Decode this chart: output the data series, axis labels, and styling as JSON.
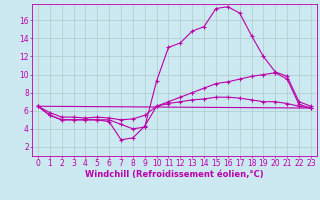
{
  "background_color": "#cce8f0",
  "line_color": "#bb00aa",
  "grid_color": "#aacccc",
  "marker": "+",
  "marker_size": 3,
  "marker_lw": 0.8,
  "xlabel": "Windchill (Refroidissement éolien,°C)",
  "xlabel_fontsize": 6.0,
  "tick_fontsize": 5.5,
  "xlim": [
    -0.5,
    23.5
  ],
  "ylim": [
    1.0,
    17.8
  ],
  "yticks": [
    2,
    4,
    6,
    8,
    10,
    12,
    14,
    16
  ],
  "xticks": [
    0,
    1,
    2,
    3,
    4,
    5,
    6,
    7,
    8,
    9,
    10,
    11,
    12,
    13,
    14,
    15,
    16,
    17,
    18,
    19,
    20,
    21,
    22,
    23
  ],
  "line1_x": [
    0,
    1,
    2,
    3,
    4,
    5,
    6,
    7,
    8,
    9,
    10,
    11,
    12,
    13,
    14,
    15,
    16,
    17,
    18,
    19,
    20,
    21,
    22,
    23
  ],
  "line1_y": [
    6.5,
    5.5,
    5.0,
    5.0,
    5.0,
    5.0,
    5.0,
    4.5,
    4.0,
    4.2,
    9.3,
    13.0,
    13.5,
    14.8,
    15.3,
    17.3,
    17.5,
    16.8,
    14.3,
    12.0,
    10.3,
    9.8,
    7.0,
    6.5
  ],
  "line2_x": [
    0,
    1,
    2,
    3,
    4,
    5,
    6,
    7,
    8,
    9,
    10,
    11,
    12,
    13,
    14,
    15,
    16,
    17,
    18,
    19,
    20,
    21,
    22,
    23
  ],
  "line2_y": [
    6.5,
    5.5,
    5.0,
    5.0,
    5.0,
    5.0,
    4.8,
    2.8,
    3.0,
    4.3,
    6.5,
    6.8,
    7.0,
    7.2,
    7.3,
    7.5,
    7.5,
    7.4,
    7.2,
    7.0,
    7.0,
    6.8,
    6.5,
    6.3
  ],
  "line3_x": [
    0,
    1,
    2,
    3,
    4,
    5,
    6,
    7,
    8,
    9,
    10,
    11,
    12,
    13,
    14,
    15,
    16,
    17,
    18,
    19,
    20,
    21,
    22,
    23
  ],
  "line3_y": [
    6.5,
    5.8,
    5.3,
    5.3,
    5.2,
    5.3,
    5.2,
    5.0,
    5.1,
    5.5,
    6.5,
    7.0,
    7.5,
    8.0,
    8.5,
    9.0,
    9.2,
    9.5,
    9.8,
    10.0,
    10.2,
    9.5,
    6.7,
    6.3
  ],
  "line4_x": [
    0,
    23
  ],
  "line4_y": [
    6.5,
    6.3
  ]
}
